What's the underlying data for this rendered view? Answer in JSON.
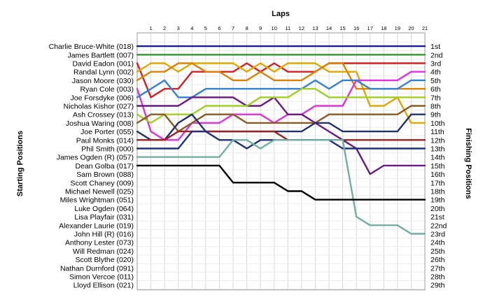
{
  "chart_data": {
    "type": "line",
    "title": "",
    "top_axis_label": "Laps",
    "left_axis_label": "Starting Positions",
    "right_axis_label": "Finishing Positions",
    "laps": [
      "1",
      "2",
      "3",
      "4",
      "5",
      "6",
      "7",
      "8",
      "9",
      "10",
      "11",
      "12",
      "13",
      "14",
      "15",
      "16",
      "17",
      "18",
      "19",
      "20",
      "21"
    ],
    "grid": true,
    "starting_grid": [
      "Charlie Bruce-White (018)",
      "James Bartlett (007)",
      "David Eadon (001)",
      "Randal Lynn (002)",
      "Jason Moore (030)",
      "Ryan Cole (003)",
      "Joe Forsdyke (006)",
      "Nicholas Kishor (027)",
      "Ash Crossey (013)",
      "Joshua Waring (008)",
      "Joe Porter (055)",
      "Paul Monks (014)",
      "Phil Smith (000)",
      "James Ogden (R) (057)",
      "Dean Golba (017)",
      "Sam Brown (088)",
      "Scott Chaney (009)",
      "Michael Newell (025)",
      "Miles Wrightman (051)",
      "Luke Ogden (064)",
      "Lisa Playfair (031)",
      "Alexander Laurie (019)",
      "John Hill (R) (016)",
      "Anthony Lester (073)",
      "Will Redman (024)",
      "Scott Blythe (020)",
      "Nathan Durnford (091)",
      "Simon Vercoe (011)",
      "Lloyd Ellison (021)"
    ],
    "finishing_labels": [
      "1st",
      "2nd",
      "3rd",
      "4th",
      "5th",
      "6th",
      "7th",
      "8th",
      "9th",
      "10th",
      "11th",
      "12th",
      "13th",
      "14th",
      "15th",
      "16th",
      "17th",
      "18th",
      "19th",
      "20th",
      "21st",
      "22nd",
      "23rd",
      "24th",
      "25th",
      "26th",
      "27th",
      "28th",
      "29th"
    ],
    "series": [
      {
        "color": "#1a1aa0",
        "positions": [
          1,
          1,
          1,
          1,
          1,
          1,
          1,
          1,
          1,
          1,
          1,
          1,
          1,
          1,
          1,
          1,
          1,
          1,
          1,
          1,
          1,
          1
        ]
      },
      {
        "color": "#2e9a2e",
        "positions": [
          2,
          2,
          2,
          2,
          2,
          2,
          2,
          2,
          2,
          2,
          2,
          2,
          2,
          2,
          2,
          2,
          2,
          2,
          2,
          2,
          2,
          2
        ]
      },
      {
        "color": "#d62020",
        "positions": [
          3,
          7,
          6,
          6,
          4,
          4,
          4,
          4,
          3,
          4,
          3,
          4,
          4,
          4,
          3,
          3,
          3,
          3,
          3,
          3,
          3,
          3
        ]
      },
      {
        "color": "#e0a800",
        "positions": [
          4,
          3,
          3,
          4,
          3,
          3,
          3,
          3,
          4,
          3,
          4,
          3,
          3,
          3,
          4,
          4,
          4,
          8,
          8,
          7,
          10,
          10
        ]
      },
      {
        "color": "#e08000",
        "positions": [
          5,
          4,
          4,
          3,
          3,
          4,
          4,
          5,
          5,
          4,
          5,
          5,
          5,
          4,
          3,
          3,
          6,
          6,
          6,
          6,
          6,
          6
        ]
      },
      {
        "color": "#e030e0",
        "positions": [
          6,
          11,
          12,
          12,
          10,
          10,
          10,
          9,
          9,
          9,
          10,
          9,
          9,
          8,
          8,
          8,
          5,
          5,
          5,
          5,
          4,
          4
        ]
      },
      {
        "color": "#3080d8",
        "positions": [
          7,
          6,
          5,
          7,
          7,
          6,
          6,
          6,
          6,
          6,
          6,
          6,
          6,
          5,
          6,
          5,
          5,
          6,
          6,
          6,
          5,
          5
        ]
      },
      {
        "color": "#6a1a80",
        "positions": [
          8,
          8,
          8,
          8,
          7,
          7,
          7,
          7,
          8,
          8,
          7,
          9,
          9,
          10,
          11,
          12,
          13,
          16,
          15,
          15,
          15,
          15
        ]
      },
      {
        "color": "#a0d020",
        "positions": [
          9,
          10,
          9,
          9,
          9,
          8,
          8,
          8,
          8,
          7,
          7,
          7,
          6,
          6,
          7,
          7,
          7,
          7,
          7,
          7,
          7,
          7
        ]
      },
      {
        "color": "#8a5a20",
        "positions": [
          10,
          9,
          9,
          11,
          10,
          9,
          9,
          9,
          10,
          10,
          10,
          10,
          10,
          10,
          9,
          9,
          9,
          9,
          9,
          9,
          8,
          8
        ]
      },
      {
        "color": "#203070",
        "positions": [
          11,
          12,
          12,
          10,
          9,
          11,
          11,
          11,
          11,
          11,
          11,
          11,
          11,
          10,
          10,
          11,
          11,
          11,
          11,
          11,
          9,
          9
        ]
      },
      {
        "color": "#a02020",
        "positions": [
          12,
          12,
          12,
          11,
          11,
          11,
          11,
          11,
          11,
          11,
          11,
          12,
          12,
          12,
          12,
          12,
          12,
          12,
          12,
          12,
          12,
          12
        ]
      },
      {
        "color": "#203080",
        "positions": [
          13,
          13,
          13,
          13,
          11,
          11,
          12,
          12,
          13,
          12,
          12,
          12,
          12,
          12,
          12,
          13,
          13,
          13,
          13,
          13,
          13,
          13
        ]
      },
      {
        "color": "#70b0a0",
        "positions": [
          14,
          14,
          14,
          14,
          14,
          14,
          14,
          12,
          12,
          13,
          12,
          12,
          12,
          12,
          12,
          12,
          21,
          22,
          22,
          22,
          23,
          23
        ]
      },
      {
        "color": "#000000",
        "positions": [
          15,
          15,
          15,
          15,
          15,
          15,
          15,
          17,
          17,
          17,
          17,
          18,
          18,
          19,
          19,
          19,
          19,
          19,
          19,
          19,
          19,
          19
        ]
      }
    ]
  }
}
